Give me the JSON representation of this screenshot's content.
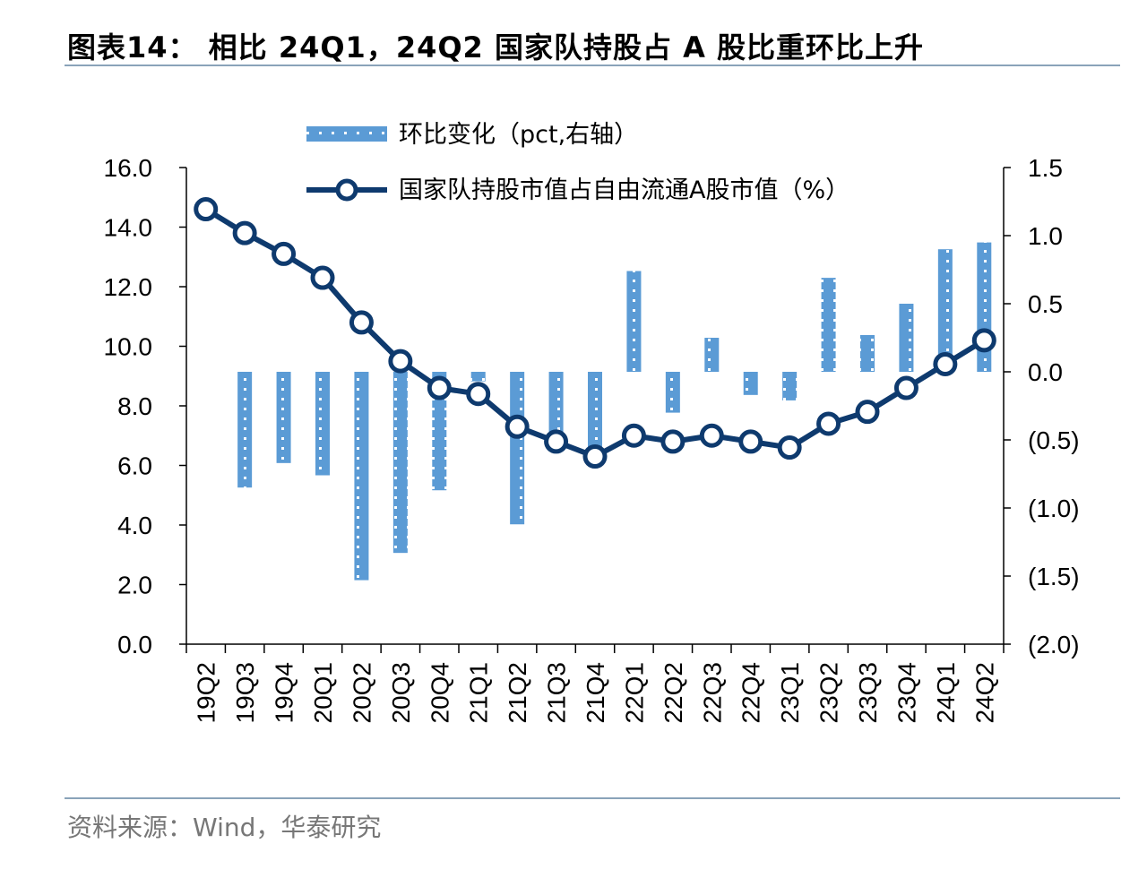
{
  "title": "图表14：  相比 24Q1，24Q2 国家队持股占 A 股比重环比上升",
  "source": "资料来源：Wind，华泰研究",
  "colors": {
    "bar": "#5b9bd5",
    "bar_dots": "#ffffff",
    "line": "#0e3a6e",
    "marker_fill": "#ffffff",
    "axis": "#000000",
    "rule": "#8aa3b9"
  },
  "chart_data": {
    "type": "bar+line",
    "categories": [
      "19Q2",
      "19Q3",
      "19Q4",
      "20Q1",
      "20Q2",
      "20Q3",
      "20Q4",
      "21Q1",
      "21Q2",
      "21Q3",
      "21Q4",
      "22Q1",
      "22Q2",
      "22Q3",
      "22Q4",
      "23Q1",
      "23Q2",
      "23Q3",
      "23Q4",
      "24Q1",
      "24Q2"
    ],
    "left_axis": {
      "ylim": [
        0,
        16
      ],
      "ticks": [
        0,
        2,
        4,
        6,
        8,
        10,
        12,
        14,
        16
      ],
      "tick_labels": [
        "0.0",
        "2.0",
        "4.0",
        "6.0",
        "8.0",
        "10.0",
        "12.0",
        "14.0",
        "16.0"
      ]
    },
    "right_axis": {
      "ylim": [
        -2.0,
        1.5
      ],
      "ticks": [
        -2.0,
        -1.5,
        -1.0,
        -0.5,
        0.0,
        0.5,
        1.0,
        1.5
      ],
      "tick_labels": [
        "(2.0)",
        "(1.5)",
        "(1.0)",
        "(0.5)",
        "0.0",
        "0.5",
        "1.0",
        "1.5"
      ]
    },
    "series": [
      {
        "name": "环比变化（pct,右轴）",
        "type": "bar",
        "axis": "right",
        "values": [
          null,
          -0.85,
          -0.67,
          -0.76,
          -1.53,
          -1.33,
          -0.87,
          -0.07,
          -1.12,
          -0.48,
          -0.55,
          0.74,
          -0.3,
          0.25,
          -0.17,
          -0.21,
          0.69,
          0.27,
          0.5,
          0.9,
          0.95
        ]
      },
      {
        "name": "国家队持股市值占自由流通A股市值（%）",
        "type": "line",
        "axis": "left",
        "values": [
          14.6,
          13.8,
          13.1,
          12.3,
          10.8,
          9.5,
          8.6,
          8.4,
          7.3,
          6.8,
          6.3,
          7.0,
          6.8,
          7.0,
          6.8,
          6.6,
          7.4,
          7.8,
          8.6,
          9.4,
          10.2
        ]
      }
    ],
    "legend_position": "top-center"
  }
}
